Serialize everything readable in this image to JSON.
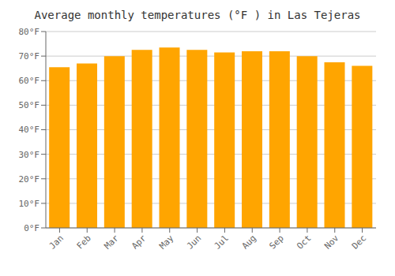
{
  "chart_data": {
    "type": "bar",
    "title": "Average monthly temperatures (°F ) in Las Tejeras",
    "categories": [
      "Jan",
      "Feb",
      "Mar",
      "Apr",
      "May",
      "Jun",
      "Jul",
      "Aug",
      "Sep",
      "Oct",
      "Nov",
      "Dec"
    ],
    "values": [
      65.5,
      67.0,
      70.0,
      72.5,
      73.5,
      72.5,
      71.5,
      72.0,
      72.0,
      70.0,
      67.5,
      66.0
    ],
    "color": "#FFA500",
    "ylim": [
      0,
      80
    ],
    "yticks": [
      {
        "value": 0,
        "label": "0°F"
      },
      {
        "value": 10,
        "label": "10°F"
      },
      {
        "value": 20,
        "label": "20°F"
      },
      {
        "value": 30,
        "label": "30°F"
      },
      {
        "value": 40,
        "label": "40°F"
      },
      {
        "value": 50,
        "label": "50°F"
      },
      {
        "value": 60,
        "label": "60°F"
      },
      {
        "value": 70,
        "label": "70°F"
      },
      {
        "value": 80,
        "label": "80°F"
      }
    ],
    "grid": true
  }
}
